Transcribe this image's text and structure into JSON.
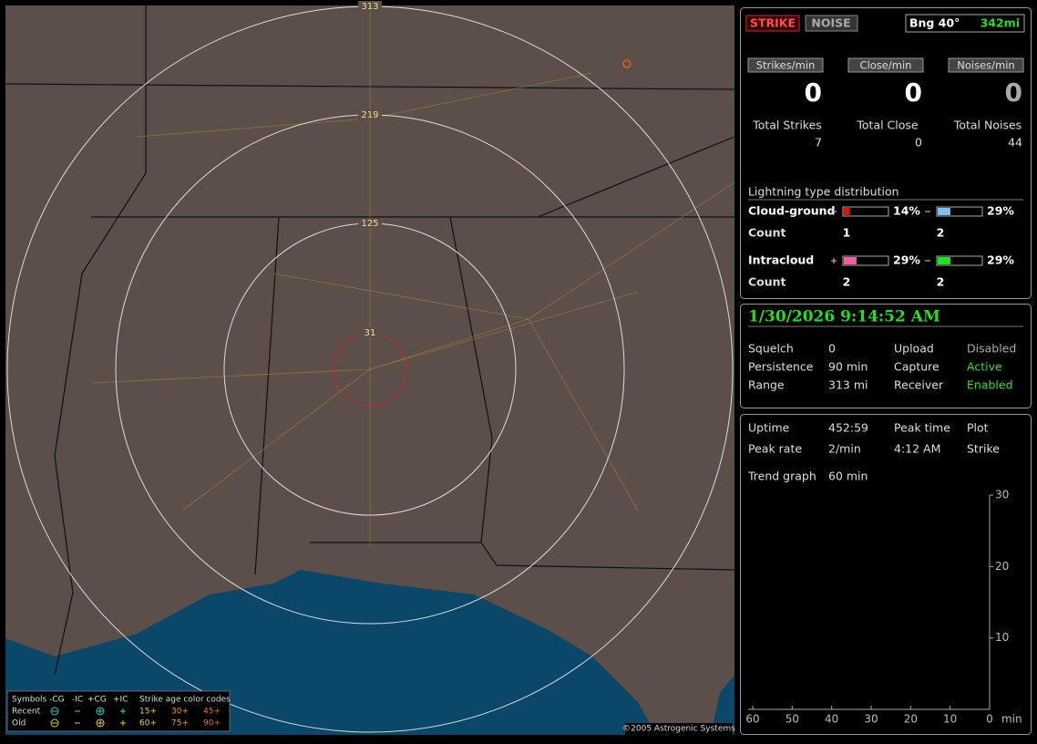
{
  "map": {
    "ring_labels": [
      "313",
      "219",
      "125",
      "31"
    ],
    "copyright": "©2005 Astrogenic Systems",
    "legend": {
      "header": [
        "Symbols",
        "-CG",
        "-IC",
        "+CG",
        "+IC",
        "Strike age color codes"
      ],
      "rows": [
        {
          "label": "Recent",
          "ages": [
            "15+",
            "30+",
            "45+"
          ]
        },
        {
          "label": "Old",
          "ages": [
            "60+",
            "75+",
            "90+"
          ]
        }
      ]
    }
  },
  "status": {
    "strike": "STRIKE",
    "noise": "NOISE",
    "bearing": "Bng 40°",
    "distance": "342mi"
  },
  "rates": [
    {
      "label": "Strikes/min",
      "value": "0"
    },
    {
      "label": "Close/min",
      "value": "0"
    },
    {
      "label": "Noises/min",
      "value": "0"
    }
  ],
  "totals": [
    {
      "label": "Total Strikes",
      "value": "7"
    },
    {
      "label": "Total Close",
      "value": "0"
    },
    {
      "label": "Total Noises",
      "value": "44"
    }
  ],
  "distribution": {
    "title": "Lightning type distribution",
    "count_label": "Count",
    "rows": [
      {
        "label": "Cloud-ground",
        "pos": {
          "value": 14,
          "label": "14%"
        },
        "neg": {
          "value": 29,
          "label": "29%"
        },
        "pos_count": "1",
        "neg_count": "2"
      },
      {
        "label": "Intracloud",
        "pos": {
          "value": 29,
          "label": "29%"
        },
        "neg": {
          "value": 29,
          "label": "29%"
        },
        "pos_count": "2",
        "neg_count": "2"
      }
    ]
  },
  "clock": "1/30/2026 9:14:52 AM",
  "settings": [
    [
      "Squelch",
      "0",
      "Upload",
      "Disabled"
    ],
    [
      "Persistence",
      "90 min",
      "Capture",
      "Active"
    ],
    [
      "Range",
      "313 mi",
      "Receiver",
      "Enabled"
    ]
  ],
  "stats": [
    [
      "Uptime",
      "452:59",
      "Peak time",
      "Plot"
    ],
    [
      "Peak rate",
      "2/min",
      "4:12 AM",
      "Strike"
    ]
  ],
  "trend_label": "Trend graph",
  "trend_window": "60 min",
  "trend": {
    "ylim": [
      0,
      30
    ],
    "yticks": [
      10,
      20,
      30
    ],
    "xlim": [
      60,
      0
    ],
    "xticks": [
      60,
      50,
      40,
      30,
      20,
      10,
      0
    ],
    "x_unit": "min"
  }
}
